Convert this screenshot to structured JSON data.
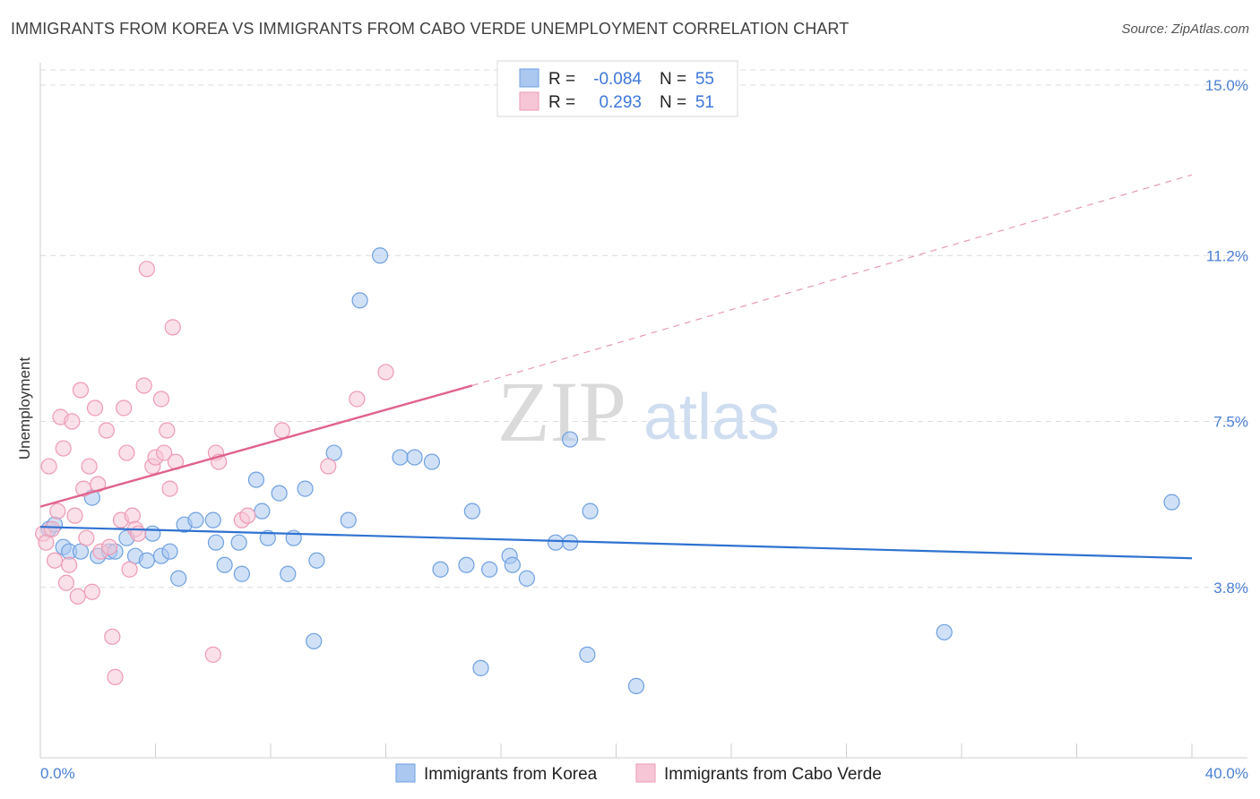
{
  "title": "IMMIGRANTS FROM KOREA VS IMMIGRANTS FROM CABO VERDE UNEMPLOYMENT CORRELATION CHART",
  "source": "Source: ZipAtlas.com",
  "watermark": {
    "zip": "ZIP",
    "atlas": "atlas"
  },
  "legend": {
    "rows": [
      {
        "r_label": "R =",
        "r_value": "-0.084",
        "n_label": "N =",
        "n_value": "55"
      },
      {
        "r_label": "R =",
        "r_value": "0.293",
        "n_label": "N =",
        "n_value": "51"
      }
    ]
  },
  "chart_data": {
    "type": "scatter",
    "title": "IMMIGRANTS FROM KOREA VS IMMIGRANTS FROM CABO VERDE UNEMPLOYMENT CORRELATION CHART",
    "xlabel": "",
    "ylabel": "Unemployment",
    "xlim": [
      0,
      40
    ],
    "ylim": [
      0,
      15.5
    ],
    "x_tick_labels": [
      "0.0%",
      "40.0%"
    ],
    "y_ticks": [
      3.8,
      7.5,
      11.2,
      15.0
    ],
    "y_tick_labels": [
      "3.8%",
      "7.5%",
      "11.2%",
      "15.0%"
    ],
    "grid": true,
    "series": [
      {
        "name": "Immigrants from Korea",
        "color": "#6fa0e0",
        "fill": "#aac8f0",
        "R": -0.084,
        "N": 55,
        "trend": {
          "x0": 0,
          "y0": 5.15,
          "x1": 40,
          "y1": 4.45
        },
        "points": [
          [
            0.3,
            5.1
          ],
          [
            0.5,
            5.2
          ],
          [
            0.8,
            4.7
          ],
          [
            1.0,
            4.6
          ],
          [
            1.4,
            4.6
          ],
          [
            1.8,
            5.8
          ],
          [
            2.0,
            4.5
          ],
          [
            2.4,
            4.6
          ],
          [
            2.6,
            4.6
          ],
          [
            3.0,
            4.9
          ],
          [
            3.3,
            4.5
          ],
          [
            3.7,
            4.4
          ],
          [
            3.9,
            5.0
          ],
          [
            4.2,
            4.5
          ],
          [
            4.5,
            4.6
          ],
          [
            4.8,
            4.0
          ],
          [
            5.0,
            5.2
          ],
          [
            5.4,
            5.3
          ],
          [
            6.0,
            5.3
          ],
          [
            6.1,
            4.8
          ],
          [
            6.4,
            4.3
          ],
          [
            6.9,
            4.8
          ],
          [
            7.0,
            4.1
          ],
          [
            7.5,
            6.2
          ],
          [
            7.7,
            5.5
          ],
          [
            7.9,
            4.9
          ],
          [
            8.3,
            5.9
          ],
          [
            8.6,
            4.1
          ],
          [
            8.8,
            4.9
          ],
          [
            9.2,
            6.0
          ],
          [
            9.6,
            4.4
          ],
          [
            9.5,
            2.6
          ],
          [
            10.2,
            6.8
          ],
          [
            10.7,
            5.3
          ],
          [
            11.1,
            10.2
          ],
          [
            11.8,
            11.2
          ],
          [
            12.5,
            6.7
          ],
          [
            13.0,
            6.7
          ],
          [
            13.6,
            6.6
          ],
          [
            13.9,
            4.2
          ],
          [
            14.8,
            4.3
          ],
          [
            15.0,
            5.5
          ],
          [
            15.3,
            2.0
          ],
          [
            15.6,
            4.2
          ],
          [
            16.3,
            4.5
          ],
          [
            16.4,
            4.3
          ],
          [
            16.9,
            4.0
          ],
          [
            17.9,
            4.8
          ],
          [
            18.4,
            4.8
          ],
          [
            18.4,
            7.1
          ],
          [
            19.0,
            2.3
          ],
          [
            19.1,
            5.5
          ],
          [
            20.7,
            1.6
          ],
          [
            31.4,
            2.8
          ],
          [
            39.3,
            5.7
          ]
        ]
      },
      {
        "name": "Immigrants from Cabo Verde",
        "color": "#ee9ab5",
        "fill": "#f6c6d6",
        "R": 0.293,
        "N": 51,
        "trend": {
          "x0": 0,
          "y0": 5.6,
          "x1": 15,
          "y1": 8.3,
          "dash_to_x": 40,
          "dash_to_y": 13.0
        },
        "points": [
          [
            0.1,
            5.0
          ],
          [
            0.2,
            4.8
          ],
          [
            0.3,
            6.5
          ],
          [
            0.4,
            5.1
          ],
          [
            0.5,
            4.4
          ],
          [
            0.6,
            5.5
          ],
          [
            0.7,
            7.6
          ],
          [
            0.8,
            6.9
          ],
          [
            0.9,
            3.9
          ],
          [
            1.0,
            4.3
          ],
          [
            1.1,
            7.5
          ],
          [
            1.2,
            5.4
          ],
          [
            1.3,
            3.6
          ],
          [
            1.4,
            8.2
          ],
          [
            1.5,
            6.0
          ],
          [
            1.6,
            4.9
          ],
          [
            1.7,
            6.5
          ],
          [
            1.8,
            3.7
          ],
          [
            1.9,
            7.8
          ],
          [
            2.0,
            6.1
          ],
          [
            2.1,
            4.6
          ],
          [
            2.3,
            7.3
          ],
          [
            2.4,
            4.7
          ],
          [
            2.5,
            2.7
          ],
          [
            2.6,
            1.8
          ],
          [
            2.8,
            5.3
          ],
          [
            2.9,
            7.8
          ],
          [
            3.0,
            6.8
          ],
          [
            3.1,
            4.2
          ],
          [
            3.2,
            5.4
          ],
          [
            3.3,
            5.1
          ],
          [
            3.4,
            5.0
          ],
          [
            3.6,
            8.3
          ],
          [
            3.7,
            10.9
          ],
          [
            3.9,
            6.5
          ],
          [
            4.0,
            6.7
          ],
          [
            4.2,
            8.0
          ],
          [
            4.3,
            6.8
          ],
          [
            4.4,
            7.3
          ],
          [
            4.5,
            6.0
          ],
          [
            4.6,
            9.6
          ],
          [
            4.7,
            6.6
          ],
          [
            6.0,
            2.3
          ],
          [
            6.1,
            6.8
          ],
          [
            6.2,
            6.6
          ],
          [
            7.0,
            5.3
          ],
          [
            7.2,
            5.4
          ],
          [
            8.4,
            7.3
          ],
          [
            10.0,
            6.5
          ],
          [
            11.0,
            8.0
          ],
          [
            12.0,
            8.6
          ]
        ]
      }
    ]
  }
}
